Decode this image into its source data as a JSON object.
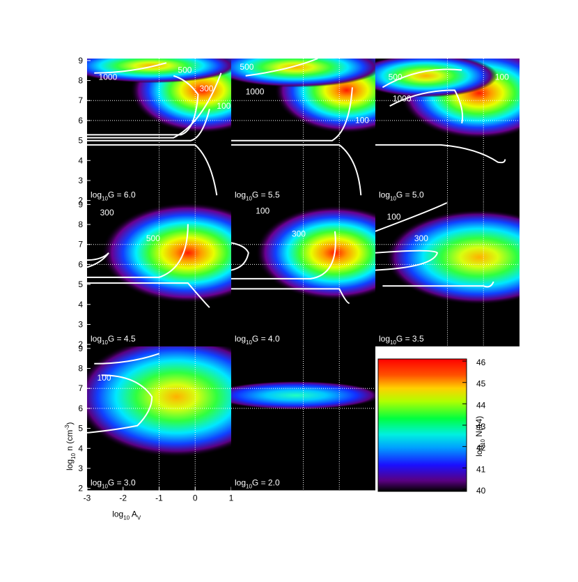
{
  "chart_data": {
    "type": "heatmap",
    "panel_label_log": "log",
    "panel_label_sub": "10",
    "panels": [
      {
        "label": "G = 6.0",
        "contour_labels": [
          1000,
          500,
          300,
          100
        ]
      },
      {
        "label": "G = 5.5",
        "contour_labels": [
          500,
          1000,
          100
        ]
      },
      {
        "label": "G = 5.0",
        "contour_labels": [
          500,
          1000,
          100
        ]
      },
      {
        "label": "G = 4.5",
        "contour_labels": [
          300,
          500
        ]
      },
      {
        "label": "G = 4.0",
        "contour_labels": [
          100,
          300
        ]
      },
      {
        "label": "G = 3.5",
        "contour_labels": [
          100,
          300
        ]
      },
      {
        "label": "G = 3.0",
        "contour_labels": [
          100
        ]
      },
      {
        "label": "G = 2.0",
        "contour_labels": []
      }
    ],
    "xlabel": {
      "main": "log",
      "sub": "10",
      "var": " A",
      "varsub": "V"
    },
    "ylabel": {
      "main": "log",
      "sub": "10",
      "var": " n (cm",
      "sup": "-3",
      "end": ")"
    },
    "xlim": [
      -3,
      1
    ],
    "xticks": [
      -3,
      -2,
      -1,
      0,
      1
    ],
    "ylim": [
      1.9,
      9.1
    ],
    "yticks": [
      2,
      3,
      4,
      5,
      6,
      7,
      8,
      9
    ],
    "grid_x": [
      -1,
      0
    ],
    "grid_y": [
      6,
      7
    ],
    "colorbar": {
      "main": "log",
      "sub": "10",
      "var": " N(14)",
      "lim": [
        39.9,
        46.1
      ],
      "ticks": [
        40,
        41,
        42,
        43,
        44,
        45,
        46
      ]
    }
  }
}
